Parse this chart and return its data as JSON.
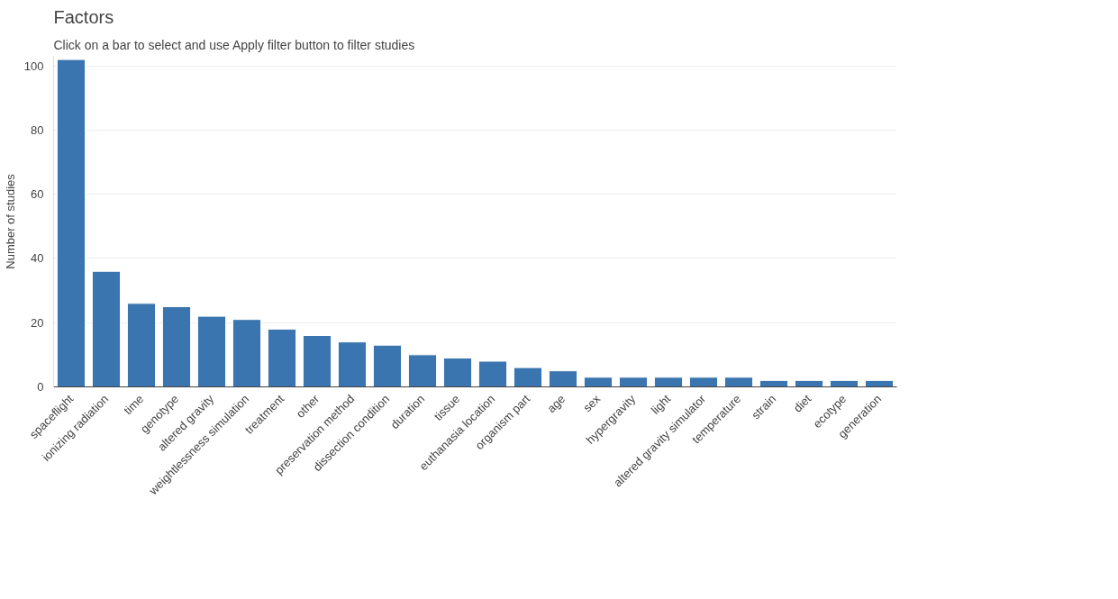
{
  "chart_data": {
    "type": "bar",
    "title": "Factors",
    "subtitle": "Click on a bar to select and use Apply filter button to filter studies",
    "ylabel": "Number of studies",
    "categories": [
      "spaceflight",
      "ionizing radiation",
      "time",
      "genotype",
      "altered gravity",
      "weightlessness simulation",
      "treatment",
      "other",
      "preservation method",
      "dissection condition",
      "duration",
      "tissue",
      "euthanasia location",
      "organism part",
      "age",
      "sex",
      "hypergravity",
      "light",
      "altered gravity simulator",
      "temperature",
      "strain",
      "diet",
      "ecotype",
      "generation"
    ],
    "values": [
      102,
      36,
      26,
      25,
      22,
      21,
      18,
      16,
      14,
      13,
      10,
      9,
      8,
      6,
      5,
      3,
      3,
      3,
      3,
      3,
      2,
      2,
      2,
      2
    ],
    "color": "#3a75b0",
    "ylim": [
      0,
      103
    ],
    "yticks": [
      0,
      20,
      40,
      60,
      80,
      100
    ],
    "grid": "y"
  }
}
